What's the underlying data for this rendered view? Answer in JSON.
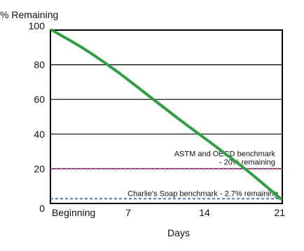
{
  "chart_data": {
    "type": "line",
    "title": "",
    "xlabel": "Days",
    "ylabel": "% Remaining",
    "x_ticks": [
      {
        "value": 0,
        "label": "Beginning"
      },
      {
        "value": 7,
        "label": "7"
      },
      {
        "value": 14,
        "label": "14"
      },
      {
        "value": 21,
        "label": "21"
      }
    ],
    "y_ticks": [
      0,
      20,
      40,
      60,
      80,
      100
    ],
    "xlim": [
      0,
      21
    ],
    "ylim": [
      0,
      100
    ],
    "grid": {
      "horizontal": true,
      "vertical": false
    },
    "series": [
      {
        "color": "#2ea043",
        "x": [
          0,
          3,
          6,
          9,
          12,
          15,
          18,
          21
        ],
        "y": [
          100,
          89,
          76,
          61.5,
          47,
          33,
          18.5,
          2.7
        ]
      }
    ],
    "reference_lines": [
      {
        "y": 2.7,
        "color": "#4a7fb5",
        "dash": "dash",
        "label": "Charlie's Soap benchmark - 2.7% remaining"
      },
      {
        "y": 20,
        "color": "#c0398e",
        "dash": "dash",
        "label_lines": [
          "ASTM and OECD benchmark",
          "- 20% remaining"
        ]
      }
    ]
  }
}
